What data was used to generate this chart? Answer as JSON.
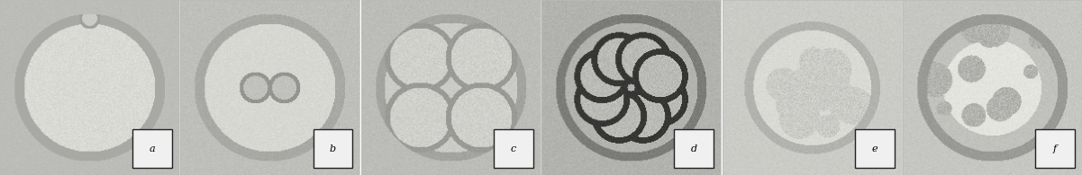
{
  "labels": [
    "a",
    "b",
    "c",
    "d",
    "e",
    "f"
  ],
  "n_panels": 6,
  "fig_width": 12.01,
  "fig_height": 1.95,
  "dpi": 100,
  "label_box_color": "#f0f0f0",
  "label_box_edge_color": "#222222",
  "label_fontsize": 8,
  "label_font": "serif",
  "bg_gray": 0.78,
  "wspace": 0.008,
  "panel_border_color": "#bbbbbb",
  "embryo_bg": 0.8,
  "zona_gray": 0.7,
  "cell_light": 0.88,
  "cell_dark": 0.3
}
